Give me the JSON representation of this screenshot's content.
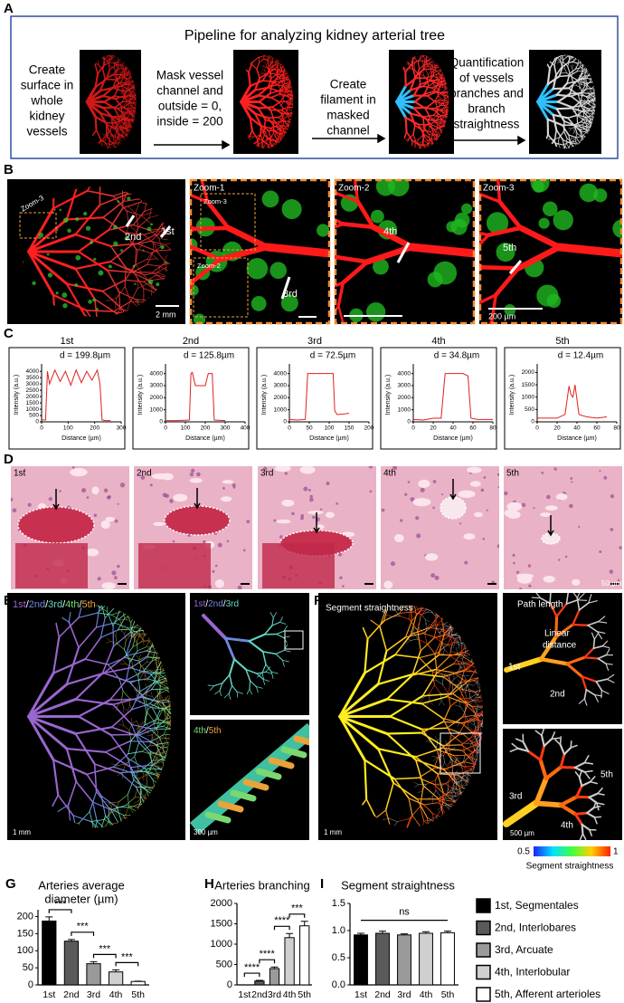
{
  "panel_labels": [
    "A",
    "B",
    "C",
    "D",
    "E",
    "F",
    "G",
    "H",
    "I"
  ],
  "pipeline": {
    "title": "Pipeline for analyzing kidney arterial tree",
    "steps": [
      [
        "Create",
        "surface in",
        "whole",
        "kidney",
        "vessels"
      ],
      [
        "Mask vessel",
        "channel and",
        "outside = 0,",
        "inside = 200"
      ],
      [
        "Create",
        "filament in",
        "masked",
        "channel"
      ],
      [
        "Quantification",
        "of vessels",
        "branches and",
        "branch",
        "straightness"
      ]
    ]
  },
  "zoom_panels": {
    "overview": {
      "zoom": "Zoom-3",
      "labels": [
        "2nd",
        "1st"
      ],
      "scale_bar": "2 mm"
    },
    "zoom1": {
      "title": "Zoom-1",
      "insets": [
        "Zoom-3",
        "Zoom-2"
      ],
      "label": "3rd"
    },
    "zoom2": {
      "title": "Zoom-2",
      "label": "4th"
    },
    "zoom3": {
      "title": "Zoom-3",
      "label": "5th",
      "scale_bar": "200 µm"
    }
  },
  "histology": {
    "labels": [
      "1st",
      "2nd",
      "3rd",
      "4th",
      "5th"
    ],
    "scale_bar": "50 µm"
  },
  "tree_3d": {
    "tiers": [
      "1st",
      "2nd",
      "3rd",
      "4th",
      "5th"
    ],
    "tier_colors": [
      "#9a66d0",
      "#6f86e0",
      "#62d6c6",
      "#7ad870",
      "#eaa33a"
    ],
    "separator": "/",
    "scale_bars": [
      "1 mm",
      "300 µm"
    ]
  },
  "straightness_3d": {
    "title": "Segment straightness",
    "path_length": "Path length",
    "linear_distance": [
      "Linear",
      "distance"
    ],
    "labels": [
      "1st",
      "2nd",
      "3rd",
      "5th",
      "4th"
    ],
    "scale_bars": [
      "1 mm",
      "500 µm"
    ],
    "colorbar": {
      "min": 0.5,
      "max": 1,
      "label": "Segment straightness"
    }
  },
  "chart_data": [
    {
      "type": "line",
      "title": "1st",
      "annotation": "d = 199.8µm",
      "x_label": "Distance (µm)",
      "y_label": "Intensity (a.u.)",
      "color": "#e02020",
      "x": [
        0,
        15,
        22,
        30,
        50,
        70,
        90,
        110,
        130,
        150,
        170,
        190,
        210,
        220,
        228,
        240,
        260
      ],
      "values": [
        150,
        150,
        4000,
        3000,
        4100,
        3200,
        4000,
        2900,
        4100,
        3100,
        4000,
        3300,
        4100,
        3000,
        150,
        100,
        100
      ],
      "xlim": [
        0,
        300
      ],
      "ylim": [
        0,
        4300
      ],
      "xticks": [
        0,
        100,
        200,
        300
      ],
      "yticks": [
        0,
        500,
        1000,
        1500,
        2000,
        2500,
        3000,
        3500,
        4000
      ]
    },
    {
      "type": "line",
      "title": "2nd",
      "annotation": "d = 125.8µm",
      "x_label": "Distance (µm)",
      "y_label": "Intensity (a.u.)",
      "color": "#e02020",
      "x": [
        0,
        60,
        120,
        128,
        135,
        150,
        200,
        215,
        225,
        235,
        245,
        300
      ],
      "values": [
        100,
        100,
        150,
        4000,
        4100,
        3000,
        3000,
        4000,
        4000,
        4000,
        150,
        100
      ],
      "xlim": [
        0,
        400
      ],
      "ylim": [
        0,
        4500
      ],
      "xticks": [
        0,
        100,
        200,
        300,
        400
      ],
      "yticks": [
        0,
        1000,
        2000,
        3000,
        4000
      ]
    },
    {
      "type": "line",
      "title": "3rd",
      "annotation": "d = 72.5µm",
      "x_label": "Distance (µm)",
      "y_label": "Intensity (a.u.)",
      "color": "#e02020",
      "x": [
        0,
        20,
        40,
        46,
        50,
        80,
        110,
        114,
        120,
        150
      ],
      "values": [
        200,
        150,
        200,
        4000,
        4000,
        4000,
        4000,
        900,
        600,
        700
      ],
      "xlim": [
        0,
        200
      ],
      "ylim": [
        0,
        4500
      ],
      "xticks": [
        0,
        50,
        100,
        150,
        200
      ],
      "yticks": [
        0,
        1000,
        2000,
        3000,
        4000
      ]
    },
    {
      "type": "line",
      "title": "4th",
      "annotation": "d = 34.8µm",
      "x_label": "Distance (µm)",
      "y_label": "Intensity (a.u.)",
      "color": "#e02020",
      "x": [
        0,
        10,
        20,
        28,
        32,
        40,
        50,
        55,
        58,
        65,
        80
      ],
      "values": [
        200,
        150,
        300,
        300,
        4000,
        4000,
        4000,
        3800,
        300,
        200,
        200
      ],
      "xlim": [
        0,
        80
      ],
      "ylim": [
        0,
        4500
      ],
      "xticks": [
        0,
        20,
        40,
        60,
        80
      ],
      "yticks": [
        0,
        1000,
        2000,
        3000,
        4000
      ]
    },
    {
      "type": "line",
      "title": "5th",
      "annotation": "d = 12.4µm",
      "x_label": "Distance (µm)",
      "y_label": "Intensity (a.u.)",
      "color": "#e02020",
      "x": [
        0,
        10,
        20,
        28,
        32,
        34,
        36,
        38,
        42,
        50,
        60,
        70
      ],
      "values": [
        150,
        150,
        150,
        300,
        1450,
        1100,
        1000,
        1500,
        300,
        200,
        150,
        200
      ],
      "xlim": [
        0,
        80
      ],
      "ylim": [
        0,
        2200
      ],
      "xticks": [
        0,
        20,
        40,
        60,
        80
      ],
      "yticks": [
        0,
        500,
        1000,
        1500,
        2000
      ]
    },
    {
      "type": "bar",
      "title_lines": [
        "Arteries average",
        "diameter (µm)"
      ],
      "categories": [
        "1st",
        "2nd",
        "3rd",
        "4th",
        "5th"
      ],
      "values": [
        187,
        128,
        62,
        38,
        10
      ],
      "errors": [
        12,
        5,
        6,
        6,
        1
      ],
      "colors": [
        "#000000",
        "#5a5a5a",
        "#9a9a9a",
        "#d0d0d0",
        "#ffffff"
      ],
      "ylim": [
        0,
        220
      ],
      "yticks": [
        0,
        50,
        100,
        150,
        200
      ],
      "significance": [
        "***",
        "***",
        "***",
        "***"
      ]
    },
    {
      "type": "bar",
      "title_lines": [
        "Arteries branching"
      ],
      "categories": [
        "1st",
        "2nd",
        "3rd",
        "4th",
        "5th"
      ],
      "values": [
        0,
        95,
        400,
        1160,
        1450
      ],
      "errors": [
        0,
        15,
        40,
        100,
        110
      ],
      "colors": [
        "#000000",
        "#5a5a5a",
        "#9a9a9a",
        "#d0d0d0",
        "#ffffff"
      ],
      "ylim": [
        0,
        2000
      ],
      "yticks": [
        0,
        500,
        1000,
        1500,
        2000
      ],
      "significance": [
        "****",
        "****",
        "****",
        "***"
      ]
    },
    {
      "type": "bar",
      "title_lines": [
        "Segment straightness"
      ],
      "categories": [
        "1st",
        "2nd",
        "3rd",
        "4th",
        "5th"
      ],
      "values": [
        0.92,
        0.95,
        0.92,
        0.95,
        0.96
      ],
      "errors": [
        0.03,
        0.04,
        0.02,
        0.03,
        0.03
      ],
      "colors": [
        "#000000",
        "#5a5a5a",
        "#9a9a9a",
        "#d0d0d0",
        "#ffffff"
      ],
      "ylim": [
        0,
        1.5
      ],
      "yticks": [
        {
          "value": 0,
          "label": "0.0"
        },
        0.5,
        {
          "value": 1,
          "label": "1.0"
        },
        1.5
      ],
      "significance_all": "ns"
    }
  ],
  "legend": {
    "entries": [
      {
        "name": "1st, Segmentales",
        "color": "#000000",
        "text_color": "#7030a0"
      },
      {
        "name": "2nd, Interlobares",
        "color": "#5a5a5a",
        "text_color": "#1f3a8a"
      },
      {
        "name": "3rd, Arcuate",
        "color": "#9a9a9a",
        "text_color": "#3cc0b0"
      },
      {
        "name": "4th, Interlobular",
        "color": "#d0d0d0",
        "text_color": "#2a9a40"
      },
      {
        "name": "5th, Afferent arterioles",
        "color": "#ffffff",
        "text_color": "#d08a10"
      }
    ]
  }
}
